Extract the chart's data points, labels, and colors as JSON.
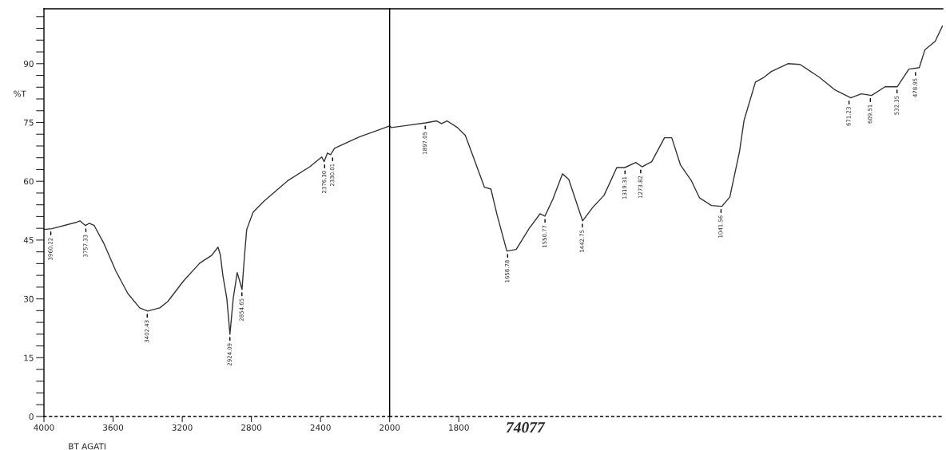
{
  "chart_data": [
    {
      "type": "line",
      "xlabel": "BT AGATI",
      "ylabel": "%T",
      "color": "#333333",
      "x": [
        4000,
        3954,
        3815,
        3792,
        3760,
        3737,
        3709,
        3654,
        3584,
        3515,
        3446,
        3400,
        3330,
        3284,
        3192,
        3099,
        3030,
        2993,
        2979,
        2965,
        2942,
        2924,
        2905,
        2882,
        2868,
        2854,
        2841,
        2827,
        2790,
        2725,
        2591,
        2462,
        2393,
        2379,
        2360,
        2342,
        2319,
        2176,
        2000
      ],
      "values": [
        47.7,
        47.9,
        49.5,
        49.9,
        48.7,
        49.3,
        48.7,
        44.2,
        37.1,
        31.4,
        27.7,
        26.9,
        27.7,
        29.3,
        34.6,
        39.1,
        41.1,
        43.2,
        41.1,
        36.0,
        30.1,
        21.0,
        30.1,
        36.7,
        34.6,
        32.4,
        40.3,
        47.7,
        52.1,
        55.0,
        60.1,
        63.7,
        66.2,
        65.0,
        67.2,
        66.8,
        68.4,
        71.3,
        74.1
      ],
      "xlim": [
        4000,
        2000
      ],
      "xticks": [
        4000,
        3600,
        3200,
        2800,
        2400
      ],
      "ylim": [
        0,
        104
      ],
      "yticks": [
        0,
        {
          "value": 3,
          "label": null
        },
        {
          "value": 6,
          "label": null
        },
        {
          "value": 9,
          "label": null
        },
        {
          "value": 12,
          "label": null
        },
        15,
        {
          "value": 18,
          "label": null
        },
        {
          "value": 21,
          "label": null
        },
        {
          "value": 24,
          "label": null
        },
        {
          "value": 27,
          "label": null
        },
        30,
        {
          "value": 33,
          "label": null
        },
        {
          "value": 36,
          "label": null
        },
        {
          "value": 39,
          "label": null
        },
        {
          "value": 42,
          "label": null
        },
        45,
        {
          "value": 48,
          "label": null
        },
        {
          "value": 51,
          "label": null
        },
        {
          "value": 54,
          "label": null
        },
        {
          "value": 57,
          "label": null
        },
        60,
        {
          "value": 63,
          "label": null
        },
        {
          "value": 66,
          "label": null
        },
        {
          "value": 69,
          "label": null
        },
        {
          "value": 72,
          "label": null
        },
        75,
        {
          "value": 78,
          "label": null
        },
        {
          "value": 81,
          "label": null
        },
        {
          "value": 84,
          "label": null
        },
        {
          "value": 87,
          "label": null
        },
        90,
        {
          "value": 93,
          "label": null
        },
        {
          "value": 96,
          "label": null
        },
        {
          "value": 99,
          "label": null
        },
        {
          "value": 102,
          "label": null
        }
      ],
      "annotations": [
        {
          "text": "3960.22",
          "x": 3960.22,
          "y": 47.9
        },
        {
          "text": "3757.33",
          "x": 3757.33,
          "y": 48.7
        },
        {
          "text": "3402.43",
          "x": 3402.43,
          "y": 26.9
        },
        {
          "text": "2924.09",
          "x": 2924.09,
          "y": 21.0
        },
        {
          "text": "2854.65",
          "x": 2854.65,
          "y": 32.4
        },
        {
          "text": "2376.30",
          "x": 2376.3,
          "y": 65.0
        },
        {
          "text": "2330.01",
          "x": 2330.01,
          "y": 66.8
        }
      ]
    },
    {
      "type": "line",
      "color": "#333333",
      "tick_labels": "x",
      "x": [
        2000,
        1995,
        1896,
        1864,
        1850,
        1834,
        1804,
        1781,
        1758,
        1726,
        1707,
        1689,
        1661,
        1634,
        1597,
        1565,
        1551,
        1528,
        1500,
        1482,
        1442,
        1412,
        1380,
        1343,
        1320,
        1288,
        1270,
        1242,
        1205,
        1184,
        1159,
        1127,
        1104,
        1069,
        1039,
        1016,
        988,
        975,
        942,
        919,
        896,
        848,
        813,
        758,
        712,
        666,
        636,
        606,
        567,
        532,
        498,
        468,
        452,
        422,
        401
      ],
      "values": [
        74.1,
        73.7,
        74.9,
        75.4,
        74.7,
        75.4,
        73.7,
        71.7,
        66.2,
        58.5,
        58.0,
        51.3,
        42.2,
        42.6,
        47.9,
        51.7,
        51.1,
        55.4,
        61.9,
        60.5,
        49.9,
        53.4,
        56.4,
        63.5,
        63.5,
        64.8,
        63.7,
        65.0,
        71.1,
        71.1,
        64.2,
        60.1,
        55.8,
        53.8,
        53.6,
        56.0,
        67.6,
        75.5,
        85.3,
        86.4,
        88.0,
        90.0,
        89.8,
        86.6,
        83.3,
        81.3,
        82.3,
        81.9,
        84.1,
        84.1,
        88.6,
        89.0,
        93.5,
        95.7,
        99.6
      ],
      "xlim": [
        2000,
        400
      ],
      "xticks": [
        2000,
        1800
      ],
      "ylim": [
        0,
        104
      ],
      "annotations": [
        {
          "text": "1897.05",
          "x": 1897.05,
          "y": 74.9
        },
        {
          "text": "1658.78",
          "x": 1658.78,
          "y": 42.2
        },
        {
          "text": "1550.77",
          "x": 1550.77,
          "y": 51.1
        },
        {
          "text": "1442.75",
          "x": 1442.75,
          "y": 49.9
        },
        {
          "text": "1319.31",
          "x": 1319.31,
          "y": 63.5
        },
        {
          "text": "1273.82",
          "x": 1273.82,
          "y": 63.7
        },
        {
          "text": "1041.56",
          "x": 1041.56,
          "y": 53.6
        },
        {
          "text": "671.23",
          "x": 671.23,
          "y": 81.3
        },
        {
          "text": "609.51",
          "x": 609.51,
          "y": 81.9
        },
        {
          "text": "532.35",
          "x": 532.35,
          "y": 84.1
        },
        {
          "text": "478.95",
          "x": 478.95,
          "y": 88.6
        },
        "74077"
      ]
    }
  ]
}
